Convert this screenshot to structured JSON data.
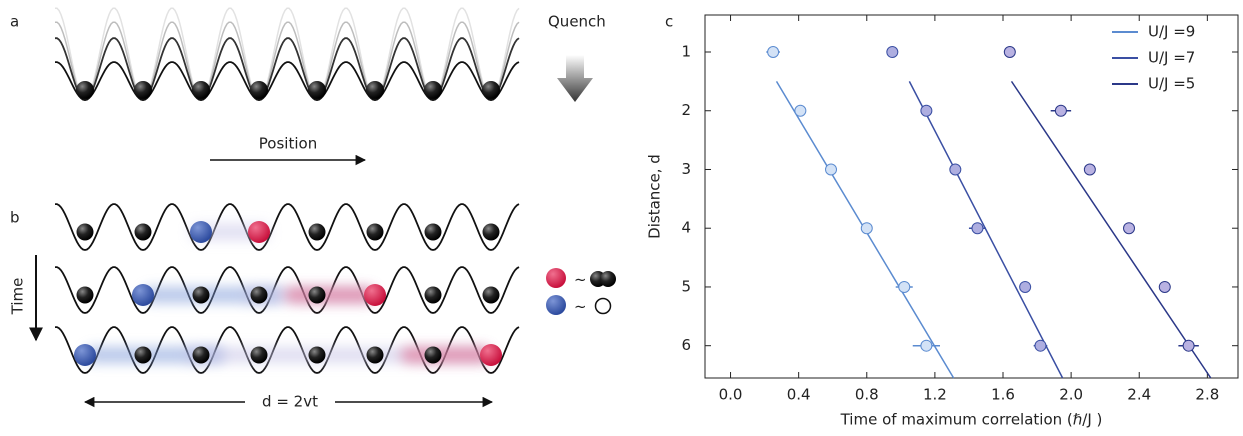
{
  "panel_a": {
    "label": "a",
    "quench": "Quench",
    "axis": "Position"
  },
  "panel_b": {
    "label": "b",
    "time": "Time",
    "legend": [
      "~",
      "~"
    ],
    "distance": "d = 2vt"
  },
  "chart_data": {
    "type": "scatter",
    "panel_label": "c",
    "xlabel": "Time of maximum correlation (ℏ/J )",
    "ylabel": "Distance, d",
    "xlim": [
      -0.15,
      2.98
    ],
    "ylim": [
      0.37,
      6.55
    ],
    "y_inverted": true,
    "legend": "upper right",
    "xticks": [
      {
        "value": 0,
        "label": "0.0"
      },
      {
        "value": 0.4,
        "label": "0.4"
      },
      {
        "value": 0.8,
        "label": "0.8"
      },
      {
        "value": 1.2,
        "label": "1.2"
      },
      {
        "value": 1.6,
        "label": "1.6"
      },
      {
        "value": 2.0,
        "label": "2.0"
      },
      {
        "value": 2.4,
        "label": "2.4"
      },
      {
        "value": 2.8,
        "label": "2.8"
      }
    ],
    "yticks": [
      1,
      2,
      3,
      4,
      5,
      6
    ],
    "series": [
      {
        "name": "U/J =9",
        "color": "#5b8bd0",
        "fill": "#d3e2f6",
        "x": [
          0.25,
          0.41,
          0.59,
          0.8,
          1.02,
          1.15
        ],
        "y": [
          1,
          2,
          3,
          4,
          5,
          6
        ],
        "xerr": [
          0.04,
          0.02,
          0.02,
          0.03,
          0.05,
          0.08
        ],
        "fit": {
          "x": [
            0.27,
            1.31
          ],
          "y": [
            1.5,
            6.55
          ]
        }
      },
      {
        "name": "U/J =7",
        "color": "#3a4fa3",
        "fill": "#aeaee0",
        "x": [
          0.95,
          1.15,
          1.32,
          1.45,
          1.73,
          1.82
        ],
        "y": [
          1,
          2,
          3,
          4,
          5,
          6
        ],
        "xerr": [
          0.02,
          0.02,
          0.02,
          0.05,
          0.03,
          0.04
        ],
        "fit": {
          "x": [
            1.05,
            1.95
          ],
          "y": [
            1.5,
            6.55
          ]
        }
      },
      {
        "name": "U/J =5",
        "color": "#2b3888",
        "fill": "#b9b2e2",
        "x": [
          1.64,
          1.94,
          2.11,
          2.34,
          2.55,
          2.69
        ],
        "y": [
          1,
          2,
          3,
          4,
          5,
          6
        ],
        "xerr": [
          0.02,
          0.06,
          0.03,
          0.03,
          0.02,
          0.06
        ],
        "fit": {
          "x": [
            1.65,
            2.82
          ],
          "y": [
            1.5,
            6.55
          ]
        }
      }
    ]
  }
}
